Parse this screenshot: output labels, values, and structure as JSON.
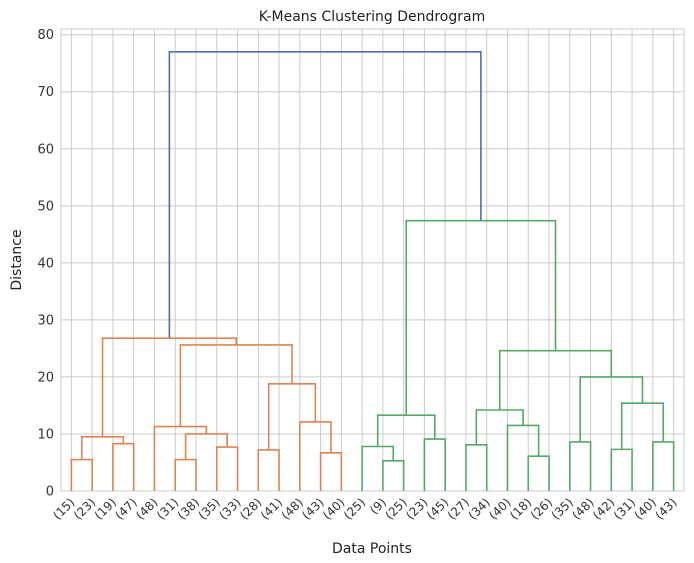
{
  "chart_data": {
    "type": "dendrogram",
    "title": "K-Means Clustering Dendrogram",
    "xlabel": "Data Points",
    "ylabel": "Distance",
    "ylim": [
      0,
      81
    ],
    "y_ticks": [
      0,
      10,
      20,
      30,
      40,
      50,
      60,
      70,
      80
    ],
    "grid": true,
    "colors": {
      "cluster_orange": "#dd8452",
      "cluster_green": "#55a868",
      "root_blue": "#4c72b0",
      "grid": "#cccccc"
    },
    "leaves": [
      "(15)",
      "(23)",
      "(19)",
      "(47)",
      "(48)",
      "(31)",
      "(38)",
      "(35)",
      "(33)",
      "(28)",
      "(41)",
      "(48)",
      "(43)",
      "(40)",
      "(25)",
      "(9)",
      "(25)",
      "(23)",
      "(45)",
      "(27)",
      "(34)",
      "(40)",
      "(18)",
      "(26)",
      "(35)",
      "(48)",
      "(42)",
      "(31)",
      "(40)",
      "(43)"
    ],
    "merges": [
      {
        "xl": 0,
        "hl": 0,
        "xr": 1,
        "hr": 0,
        "h": 5.5,
        "c": "orange"
      },
      {
        "xl": 2,
        "hl": 0,
        "xr": 3,
        "hr": 0,
        "h": 8.3,
        "c": "orange"
      },
      {
        "xl": 0.5,
        "hl": 5.5,
        "xr": 2.5,
        "hr": 8.3,
        "h": 9.5,
        "c": "orange"
      },
      {
        "xl": 5,
        "hl": 0,
        "xr": 6,
        "hr": 0,
        "h": 5.5,
        "c": "orange"
      },
      {
        "xl": 7,
        "hl": 0,
        "xr": 8,
        "hr": 0,
        "h": 7.7,
        "c": "orange"
      },
      {
        "xl": 5.5,
        "hl": 5.5,
        "xr": 7.5,
        "hr": 7.7,
        "h": 10.0,
        "c": "orange"
      },
      {
        "xl": 4,
        "hl": 0,
        "xr": 6.5,
        "hr": 10.0,
        "h": 11.3,
        "c": "orange"
      },
      {
        "xl": 9,
        "hl": 0,
        "xr": 10,
        "hr": 0,
        "h": 7.2,
        "c": "orange"
      },
      {
        "xl": 12,
        "hl": 0,
        "xr": 13,
        "hr": 0,
        "h": 6.7,
        "c": "orange"
      },
      {
        "xl": 11,
        "hl": 0,
        "xr": 12.5,
        "hr": 6.7,
        "h": 12.1,
        "c": "orange"
      },
      {
        "xl": 9.5,
        "hl": 7.2,
        "xr": 11.75,
        "hr": 12.1,
        "h": 18.8,
        "c": "orange"
      },
      {
        "xl": 5.25,
        "hl": 11.3,
        "xr": 10.625,
        "hr": 18.8,
        "h": 25.6,
        "c": "orange"
      },
      {
        "xl": 1.5,
        "hl": 9.5,
        "xr": 7.9375,
        "hr": 25.6,
        "h": 26.8,
        "c": "orange"
      },
      {
        "xl": 15,
        "hl": 0,
        "xr": 16,
        "hr": 0,
        "h": 5.3,
        "c": "green"
      },
      {
        "xl": 14,
        "hl": 0,
        "xr": 15.5,
        "hr": 5.3,
        "h": 7.8,
        "c": "green"
      },
      {
        "xl": 17,
        "hl": 0,
        "xr": 18,
        "hr": 0,
        "h": 9.1,
        "c": "green"
      },
      {
        "xl": 14.75,
        "hl": 7.8,
        "xr": 17.5,
        "hr": 9.1,
        "h": 13.3,
        "c": "green"
      },
      {
        "xl": 22,
        "hl": 0,
        "xr": 23,
        "hr": 0,
        "h": 6.1,
        "c": "green"
      },
      {
        "xl": 21,
        "hl": 0,
        "xr": 22.5,
        "hr": 6.1,
        "h": 11.5,
        "c": "green"
      },
      {
        "xl": 19,
        "hl": 0,
        "xr": 20,
        "hr": 0,
        "h": 8.1,
        "c": "green"
      },
      {
        "xl": 19.5,
        "hl": 8.1,
        "xr": 21.75,
        "hr": 11.5,
        "h": 14.2,
        "c": "green"
      },
      {
        "xl": 26,
        "hl": 0,
        "xr": 27,
        "hr": 0,
        "h": 7.3,
        "c": "green"
      },
      {
        "xl": 28,
        "hl": 0,
        "xr": 29,
        "hr": 0,
        "h": 8.6,
        "c": "green"
      },
      {
        "xl": 26.5,
        "hl": 7.3,
        "xr": 28.5,
        "hr": 8.6,
        "h": 15.4,
        "c": "green"
      },
      {
        "xl": 24,
        "hl": 0,
        "xr": 25,
        "hr": 0,
        "h": 8.6,
        "c": "green"
      },
      {
        "xl": 24.5,
        "hl": 8.6,
        "xr": 27.5,
        "hr": 15.4,
        "h": 20.0,
        "c": "green"
      },
      {
        "xl": 20.625,
        "hl": 14.2,
        "xr": 26.0,
        "hr": 20.0,
        "h": 24.6,
        "c": "green"
      },
      {
        "xl": 16.125,
        "hl": 13.3,
        "xr": 23.3125,
        "hr": 24.6,
        "h": 47.4,
        "c": "green"
      },
      {
        "xl": 4.71875,
        "hl": 26.8,
        "xr": 19.71875,
        "hr": 47.4,
        "h": 77.0,
        "c": "blue"
      }
    ]
  }
}
